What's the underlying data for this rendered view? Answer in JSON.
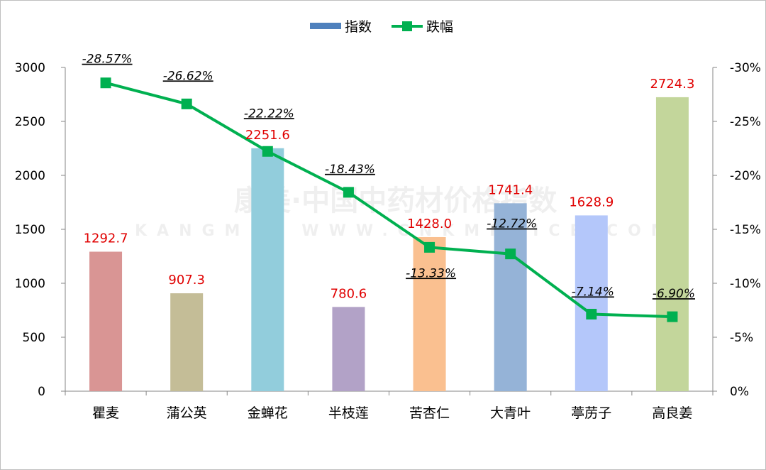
{
  "watermark": {
    "brand": "康美·中国中药材价格指数",
    "url": "KANGMEI WWW.CNKMPRICE.COM"
  },
  "chart_data": {
    "type": "bar",
    "categories": [
      "瞿麦",
      "蒲公英",
      "金蝉花",
      "半枝莲",
      "苦杏仁",
      "大青叶",
      "葶苈子",
      "高良姜"
    ],
    "series": [
      {
        "name": "指数",
        "type": "bar",
        "axis": "left",
        "values": [
          1292.7,
          907.3,
          2251.6,
          780.6,
          1428.0,
          1741.4,
          1628.9,
          2724.3
        ],
        "value_labels": [
          "1292.7",
          "907.3",
          "2251.6",
          "780.6",
          "1428.0",
          "1741.4",
          "1628.9",
          "2724.3"
        ],
        "colors": [
          "#d99594",
          "#c4bd97",
          "#92cddc",
          "#b2a2c7",
          "#fac090",
          "#95b3d7",
          "#b4c7fa",
          "#c3d69b"
        ]
      },
      {
        "name": "跌幅",
        "type": "line",
        "axis": "right",
        "values": [
          -28.57,
          -26.62,
          -22.22,
          -18.43,
          -13.33,
          -12.72,
          -7.14,
          -6.9
        ],
        "value_labels": [
          "-28.57%",
          "-26.62%",
          "-22.22%",
          "-18.43%",
          "-13.33%",
          "-12.72%",
          "-7.14%",
          "-6.90%"
        ],
        "color": "#00b050"
      }
    ],
    "left_axis": {
      "min": 0,
      "max": 3000,
      "step": 500,
      "ticks": [
        "0",
        "500",
        "1000",
        "1500",
        "2000",
        "2500",
        "3000"
      ]
    },
    "right_axis": {
      "min": 0,
      "max": -30,
      "step": -5,
      "reversed": true,
      "ticks": [
        "0%",
        "-5%",
        "-10%",
        "-15%",
        "-20%",
        "-25%",
        "-30%"
      ]
    },
    "legend": {
      "position": "top",
      "items": [
        "指数",
        "跌幅"
      ]
    },
    "grid": false
  }
}
